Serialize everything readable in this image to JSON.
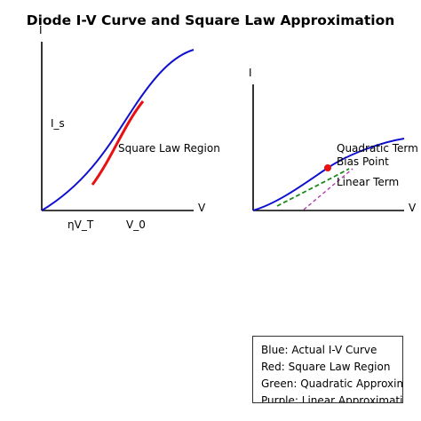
{
  "title": "Diode I-V Curve and Square Law Approximation",
  "colors": {
    "actual_curve": "#1010d0",
    "square_law": "#e81010",
    "quadratic": "#1a8a1a",
    "linear": "#b030b0",
    "axes": "#000000"
  },
  "left_panel": {
    "y_axis_label": "I",
    "x_axis_label": "V",
    "saturation_label": "I_s",
    "region_label": "Square Law Region",
    "x_tick_1": "ηV_T",
    "x_tick_2": "V_0"
  },
  "right_panel": {
    "y_axis_label": "I",
    "x_axis_label": "V",
    "quadratic_label": "Quadratic Term",
    "bias_label": "Bias Point",
    "linear_label": "Linear Term"
  },
  "legend": {
    "items": [
      "Blue: Actual I-V Curve",
      "Red: Square Law Region",
      "Green: Quadratic Approximation",
      "Purple: Linear Approximation"
    ]
  }
}
